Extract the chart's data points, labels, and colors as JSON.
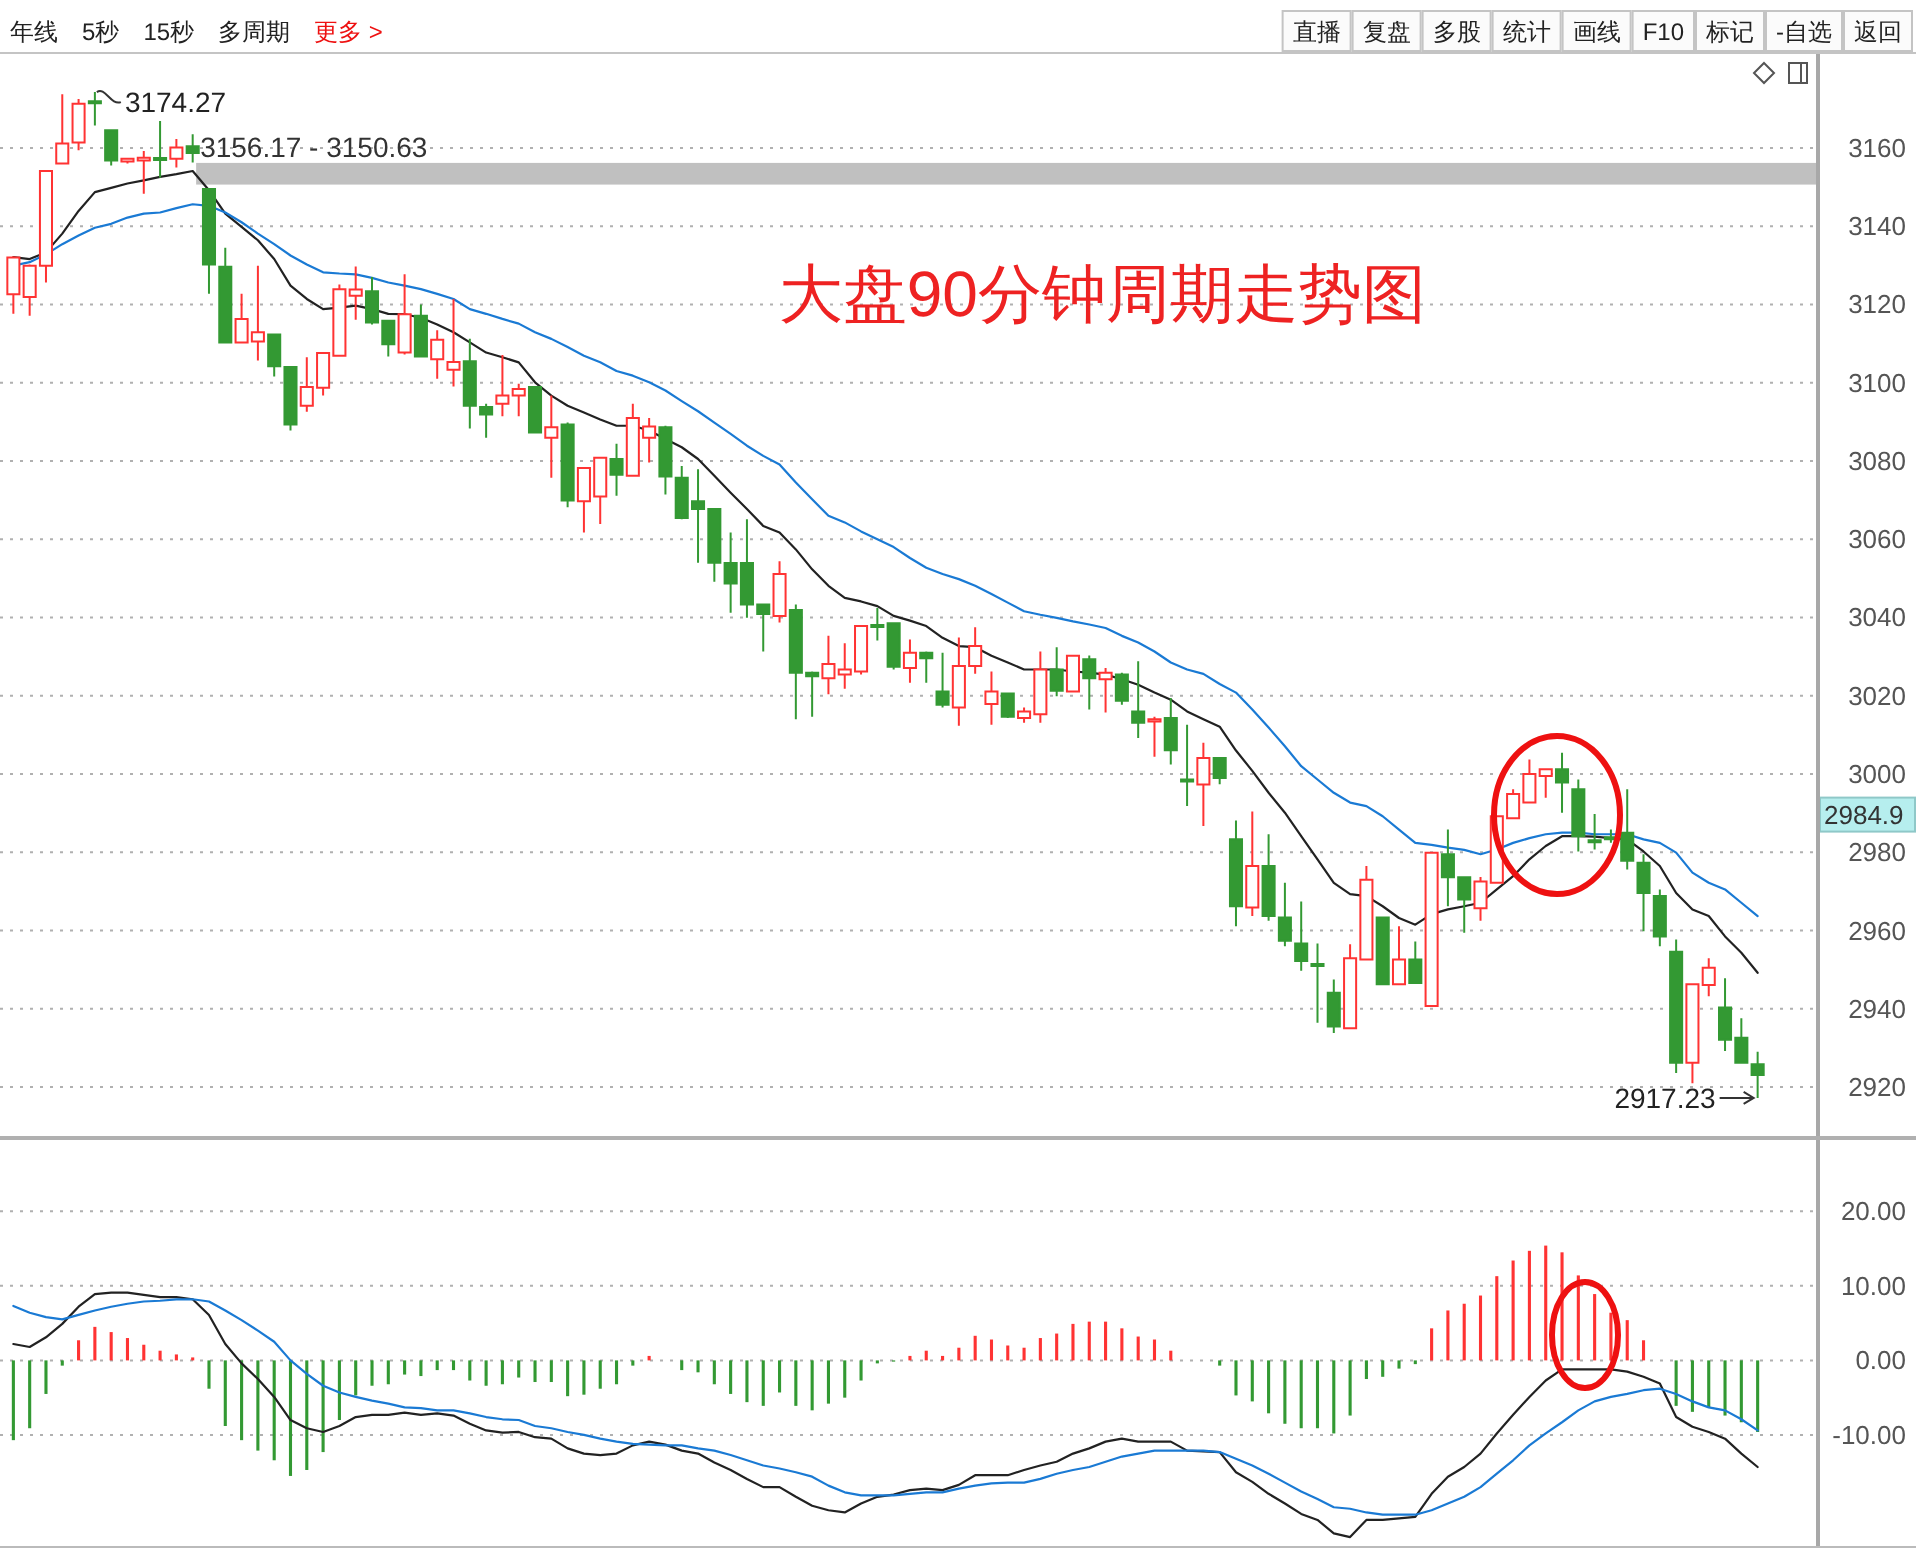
{
  "chart_data": [
    {
      "type": "candlestick",
      "title": "大盘90分钟周期走势图",
      "categories": [
        null,
        null,
        null,
        null,
        null,
        null,
        null,
        null,
        null,
        null,
        null,
        null,
        null,
        null,
        null,
        null,
        null,
        null,
        null,
        null,
        null,
        null,
        null,
        null,
        null,
        null,
        null,
        null,
        null,
        null,
        null,
        null,
        null,
        null,
        null,
        null,
        null,
        null,
        null,
        null,
        null,
        null,
        null,
        null,
        null,
        null,
        null,
        null,
        null,
        null,
        null,
        null,
        null,
        null,
        null,
        null,
        null,
        null,
        null,
        null,
        null,
        null,
        null,
        null,
        null,
        null,
        null,
        null,
        null,
        null,
        null,
        null,
        null,
        null,
        null,
        null,
        null,
        null,
        null,
        null,
        null,
        null,
        null,
        null,
        null,
        null,
        null,
        null,
        null,
        null,
        null,
        null,
        null,
        null,
        null,
        null,
        null,
        null,
        null,
        null,
        null,
        null,
        null,
        null,
        null,
        null,
        null,
        null
      ],
      "ohlc": [
        [
          3122.6,
          3132.3,
          3117.6,
          3132.0
        ],
        [
          3121.9,
          3130.2,
          3117.1,
          3129.9
        ],
        [
          3129.9,
          3154.1,
          3125.6,
          3154.1
        ],
        [
          3156.0,
          3173.7,
          3156.0,
          3161.1
        ],
        [
          3161.4,
          3172.5,
          3159.4,
          3171.3
        ],
        [
          3171.9,
          3174.27,
          3165.7,
          3171.4
        ],
        [
          3164.5,
          3164.5,
          3155.5,
          3156.8
        ],
        [
          3156.5,
          3157.5,
          3156.0,
          3157.2
        ],
        [
          3156.8,
          3159.2,
          3148.3,
          3157.5
        ],
        [
          3157.3,
          3166.9,
          3152.4,
          3157.0
        ],
        [
          3157.2,
          3162.3,
          3155.0,
          3160.1
        ],
        [
          3160.4,
          3163.5,
          3156.3,
          3158.7
        ],
        [
          3149.5,
          3149.5,
          3122.7,
          3130.2
        ],
        [
          3129.6,
          3134.5,
          3110.3,
          3110.3
        ],
        [
          3110.3,
          3122.7,
          3110.3,
          3116.3
        ],
        [
          3110.5,
          3129.9,
          3105.7,
          3112.9
        ],
        [
          3112.3,
          3112.3,
          3101.6,
          3104.2
        ],
        [
          3104.0,
          3104.0,
          3087.8,
          3089.3
        ],
        [
          3094.1,
          3106.5,
          3092.6,
          3098.9
        ],
        [
          3098.7,
          3107.6,
          3096.7,
          3107.6
        ],
        [
          3106.9,
          3125.1,
          3106.9,
          3123.9
        ],
        [
          3122.2,
          3129.7,
          3116.1,
          3123.8
        ],
        [
          3123.4,
          3127.0,
          3114.9,
          3115.4
        ],
        [
          3115.8,
          3115.8,
          3106.7,
          3109.8
        ],
        [
          3107.7,
          3127.7,
          3107.2,
          3117.5
        ],
        [
          3117.1,
          3120.0,
          3106.7,
          3106.7
        ],
        [
          3106.0,
          3113.4,
          3101.0,
          3111.0
        ],
        [
          3103.3,
          3121.4,
          3099.0,
          3105.3
        ],
        [
          3105.5,
          3111.2,
          3088.3,
          3094.1
        ],
        [
          3093.8,
          3094.6,
          3085.9,
          3091.9
        ],
        [
          3094.6,
          3107.1,
          3091.4,
          3096.7
        ],
        [
          3096.7,
          3099.7,
          3091.4,
          3098.4
        ],
        [
          3098.9,
          3099.0,
          3087.3,
          3087.3
        ],
        [
          3085.9,
          3096.7,
          3075.7,
          3088.6
        ],
        [
          3089.3,
          3089.8,
          3068.2,
          3069.9
        ],
        [
          3069.7,
          3078.2,
          3061.7,
          3078.2
        ],
        [
          3070.9,
          3080.8,
          3063.9,
          3080.8
        ],
        [
          3080.5,
          3084.4,
          3071.1,
          3076.5
        ],
        [
          3076.2,
          3094.6,
          3076.2,
          3091.0
        ],
        [
          3085.9,
          3091.0,
          3079.6,
          3088.8
        ],
        [
          3088.6,
          3089.0,
          3071.4,
          3076.0
        ],
        [
          3075.7,
          3078.7,
          3065.1,
          3065.4
        ],
        [
          3069.7,
          3077.9,
          3054.0,
          3067.7
        ],
        [
          3067.7,
          3067.7,
          3049.1,
          3054.0
        ],
        [
          3053.9,
          3061.7,
          3041.2,
          3048.7
        ],
        [
          3053.9,
          3065.1,
          3039.9,
          3043.3
        ],
        [
          3043.3,
          3043.3,
          3031.3,
          3040.9
        ],
        [
          3040.4,
          3054.4,
          3038.7,
          3051.1
        ],
        [
          3041.9,
          3043.3,
          3014.0,
          3025.9
        ],
        [
          3025.9,
          3026.2,
          3014.6,
          3025.0
        ],
        [
          3024.5,
          3035.3,
          3020.4,
          3028.1
        ],
        [
          3025.4,
          3033.4,
          3021.8,
          3026.7
        ],
        [
          3026.2,
          3037.8,
          3025.4,
          3037.8
        ],
        [
          3038.0,
          3042.4,
          3034.1,
          3037.6
        ],
        [
          3038.5,
          3038.5,
          3026.7,
          3027.4
        ],
        [
          3027.1,
          3034.4,
          3023.3,
          3031.0
        ],
        [
          3031.0,
          3031.3,
          3023.3,
          3029.6
        ],
        [
          3021.1,
          3031.0,
          3017.0,
          3017.7
        ],
        [
          3017.0,
          3034.9,
          3012.3,
          3027.6
        ],
        [
          3027.6,
          3037.5,
          3025.6,
          3032.7
        ],
        [
          3017.9,
          3026.2,
          3012.6,
          3021.1
        ],
        [
          3020.6,
          3020.8,
          3014.3,
          3014.6
        ],
        [
          3014.3,
          3017.0,
          3013.1,
          3016.0
        ],
        [
          3015.3,
          3031.3,
          3013.1,
          3026.7
        ],
        [
          3026.7,
          3032.4,
          3019.9,
          3021.3
        ],
        [
          3021.1,
          3030.2,
          3021.1,
          3030.2
        ],
        [
          3029.3,
          3030.3,
          3016.5,
          3024.5
        ],
        [
          3024.2,
          3027.1,
          3015.7,
          3025.9
        ],
        [
          3025.4,
          3025.9,
          3017.7,
          3018.7
        ],
        [
          3016.0,
          3028.8,
          3009.2,
          3013.1
        ],
        [
          3013.4,
          3014.6,
          3004.4,
          3014.0
        ],
        [
          3014.3,
          3019.4,
          3002.4,
          3006.1
        ],
        [
          2998.6,
          3012.6,
          2991.8,
          2998.1
        ],
        [
          2997.3,
          3008.0,
          2986.7,
          3004.1
        ],
        [
          3004.1,
          3004.1,
          2997.4,
          2999.0
        ],
        [
          2983.3,
          2988.1,
          2961.1,
          2966.2
        ],
        [
          2965.9,
          2990.4,
          2963.7,
          2976.5
        ],
        [
          2976.5,
          2984.6,
          2962.5,
          2963.7
        ],
        [
          2963.3,
          2972.2,
          2956.0,
          2957.4
        ],
        [
          2956.7,
          2967.4,
          2949.7,
          2952.2
        ],
        [
          2951.4,
          2956.7,
          2936.4,
          2951.0
        ],
        [
          2944.1,
          2947.5,
          2933.8,
          2935.5
        ],
        [
          2935.0,
          2956.5,
          2935.0,
          2952.9
        ],
        [
          2952.6,
          2976.5,
          2952.6,
          2973.0
        ],
        [
          2963.3,
          2963.3,
          2946.3,
          2946.3
        ],
        [
          2946.3,
          2961.1,
          2946.3,
          2952.6
        ],
        [
          2952.6,
          2957.2,
          2946.6,
          2946.6
        ],
        [
          2940.7,
          2979.9,
          2940.7,
          2979.9
        ],
        [
          2979.5,
          2985.8,
          2966.2,
          2973.6
        ],
        [
          2973.6,
          2973.6,
          2959.4,
          2967.9
        ],
        [
          2965.7,
          2973.7,
          2962.5,
          2972.5
        ],
        [
          2972.2,
          2989.2,
          2972.2,
          2989.2
        ],
        [
          2988.7,
          2996.1,
          2988.7,
          2994.9
        ],
        [
          2992.7,
          3003.7,
          2992.7,
          3000.0
        ],
        [
          2999.5,
          3001.5,
          2993.9,
          3001.2
        ],
        [
          3001.2,
          3005.4,
          2990.1,
          2997.8
        ],
        [
          2996.1,
          2998.6,
          2980.2,
          2984.1
        ],
        [
          2983.0,
          2989.8,
          2980.7,
          2982.6
        ],
        [
          2983.8,
          2985.8,
          2982.4,
          2983.4
        ],
        [
          2985.0,
          2996.1,
          2975.6,
          2977.8
        ],
        [
          2977.3,
          2979.5,
          2959.8,
          2969.6
        ],
        [
          2968.8,
          2970.5,
          2956.0,
          2958.5
        ],
        [
          2954.6,
          2957.7,
          2923.6,
          2926.2
        ],
        [
          2926.2,
          2946.3,
          2921.0,
          2946.3
        ],
        [
          2946.1,
          2952.9,
          2943.2,
          2950.5
        ],
        [
          2940.3,
          2947.8,
          2929.2,
          2932.1
        ],
        [
          2932.6,
          2937.6,
          2926.2,
          2926.2
        ],
        [
          2925.8,
          2929.0,
          2917.23,
          2923.1
        ]
      ],
      "colors": [
        "#ff3333",
        "#ff3333",
        "#ff3333",
        "#ff3333",
        "#ff3333",
        "#339933",
        "#339933",
        "#ff3333",
        "#ff3333",
        "#339933",
        "#ff3333",
        "#339933",
        "#339933",
        "#339933",
        "#ff3333",
        "#ff3333",
        "#339933",
        "#339933",
        "#ff3333",
        "#ff3333",
        "#ff3333",
        "#ff3333",
        "#339933",
        "#339933",
        "#ff3333",
        "#339933",
        "#ff3333",
        "#ff3333",
        "#339933",
        "#339933",
        "#ff3333",
        "#ff3333",
        "#339933",
        "#ff3333",
        "#339933",
        "#ff3333",
        "#ff3333",
        "#339933",
        "#ff3333",
        "#ff3333",
        "#339933",
        "#339933",
        "#339933",
        "#339933",
        "#339933",
        "#339933",
        "#339933",
        "#ff3333",
        "#339933",
        "#339933",
        "#ff3333",
        "#ff3333",
        "#ff3333",
        "#339933",
        "#339933",
        "#ff3333",
        "#339933",
        "#339933",
        "#ff3333",
        "#ff3333",
        "#ff3333",
        "#339933",
        "#ff3333",
        "#ff3333",
        "#339933",
        "#ff3333",
        "#339933",
        "#ff3333",
        "#339933",
        "#339933",
        "#ff3333",
        "#339933",
        "#339933",
        "#ff3333",
        "#339933",
        "#339933",
        "#ff3333",
        "#339933",
        "#339933",
        "#339933",
        "#339933",
        "#339933",
        "#ff3333",
        "#ff3333",
        "#339933",
        "#ff3333",
        "#339933",
        "#ff3333",
        "#339933",
        "#339933",
        "#ff3333",
        "#ff3333",
        "#ff3333",
        "#ff3333",
        "#ff3333",
        "#339933",
        "#339933",
        "#339933",
        "#339933",
        "#339933",
        "#339933",
        "#339933",
        "#339933",
        "#ff3333",
        "#ff3333",
        "#339933",
        "#339933",
        "#339933"
      ],
      "series": [
        {
          "type": "line",
          "color": "#222222",
          "values": [
            3132.1,
            3131.6,
            3133.3,
            3138.1,
            3143.9,
            3148.7,
            3149.8,
            3150.9,
            3151.7,
            3152.6,
            3153.3,
            3154.1,
            3149.2,
            3143.2,
            3139.8,
            3136.4,
            3131.6,
            3124.8,
            3121.4,
            3118.8,
            3119.2,
            3119.7,
            3118.8,
            3117.6,
            3117.5,
            3116.6,
            3114.9,
            3112.9,
            3110.3,
            3107.7,
            3106.5,
            3105.2,
            3100.1,
            3096.7,
            3094.1,
            3092.4,
            3090.6,
            3089.0,
            3089.0,
            3087.8,
            3085.6,
            3083.5,
            3080.5,
            3076.2,
            3071.9,
            3067.7,
            3063.4,
            3061.7,
            3057.4,
            3052.3,
            3048.1,
            3045.0,
            3044.1,
            3042.9,
            3040.4,
            3039.2,
            3037.8,
            3034.8,
            3032.7,
            3032.4,
            3030.2,
            3028.5,
            3026.7,
            3026.7,
            3026.7,
            3026.2,
            3025.9,
            3025.4,
            3024.2,
            3022.8,
            3020.8,
            3019.0,
            3016.0,
            3014.0,
            3012.1,
            3006.0,
            3000.8,
            2995.2,
            2990.1,
            2984.1,
            2978.2,
            2972.2,
            2969.3,
            2968.8,
            2966.2,
            2963.2,
            2961.5,
            2964.2,
            2965.4,
            2966.2,
            2967.1,
            2970.5,
            2973.9,
            2978.2,
            2981.6,
            2984.1,
            2984.1,
            2984.0,
            2983.6,
            2983.3,
            2980.2,
            2976.5,
            2969.6,
            2965.4,
            2963.7,
            2958.5,
            2954.3,
            2949.2
          ]
        },
        {
          "type": "line",
          "color": "#1a7ad4",
          "values": [
            3129.9,
            3130.8,
            3132.8,
            3135.4,
            3137.6,
            3139.6,
            3140.6,
            3142.2,
            3143.2,
            3143.5,
            3144.6,
            3145.6,
            3145.2,
            3143.5,
            3141.0,
            3138.1,
            3135.4,
            3132.5,
            3130.2,
            3128.2,
            3127.9,
            3127.7,
            3126.8,
            3125.6,
            3124.8,
            3123.9,
            3122.7,
            3121.4,
            3118.8,
            3117.6,
            3116.3,
            3115.1,
            3112.9,
            3111.2,
            3109.1,
            3106.9,
            3105.2,
            3103.0,
            3101.8,
            3100.1,
            3098.0,
            3095.3,
            3092.7,
            3089.8,
            3086.9,
            3083.9,
            3081.3,
            3079.1,
            3074.5,
            3070.2,
            3066.0,
            3064.3,
            3062.0,
            3060.0,
            3058.0,
            3055.2,
            3052.7,
            3051.1,
            3049.8,
            3048.1,
            3046.0,
            3043.8,
            3041.6,
            3040.7,
            3039.9,
            3039.0,
            3038.2,
            3037.3,
            3035.3,
            3033.6,
            3031.3,
            3028.5,
            3026.7,
            3025.6,
            3023.0,
            3020.8,
            3016.5,
            3011.9,
            3007.1,
            3002.0,
            2998.6,
            2995.2,
            2992.7,
            2991.8,
            2989.2,
            2985.8,
            2982.4,
            2981.9,
            2981.2,
            2980.6,
            2979.5,
            2980.7,
            2982.4,
            2983.6,
            2984.6,
            2985.0,
            2985.0,
            2984.6,
            2984.6,
            2984.6,
            2983.3,
            2982.4,
            2979.9,
            2974.8,
            2972.2,
            2970.5,
            2967.1,
            2963.7
          ]
        }
      ],
      "ylim": [
        2908,
        3184
      ],
      "yticks": [
        2920,
        2940,
        2960,
        2980,
        3000,
        3020,
        3040,
        3060,
        3080,
        3100,
        3120,
        3140,
        3160
      ],
      "grid": "y",
      "tick_labels": "y",
      "bands": [
        {
          "axis": "y",
          "from": 3150.63,
          "to": 3156.17,
          "label": "3156.17 - 3150.63",
          "color": "#c0c0c0"
        }
      ],
      "annotations": [
        "年线",
        "5秒",
        "15秒",
        "多周期",
        "更多 >",
        "直播",
        "复盘",
        "多股",
        "统计",
        "画线",
        "F10",
        "标记",
        "-自选",
        "返回",
        "3174.27",
        "2917.23",
        "2984.9"
      ]
    },
    {
      "type": "bar",
      "categories": [
        null,
        null,
        null,
        null,
        null,
        null,
        null,
        null,
        null,
        null,
        null,
        null,
        null,
        null,
        null,
        null,
        null,
        null,
        null,
        null,
        null,
        null,
        null,
        null,
        null,
        null,
        null,
        null,
        null,
        null,
        null,
        null,
        null,
        null,
        null,
        null,
        null,
        null,
        null,
        null,
        null,
        null,
        null,
        null,
        null,
        null,
        null,
        null,
        null,
        null,
        null,
        null,
        null,
        null,
        null,
        null,
        null,
        null,
        null,
        null,
        null,
        null,
        null,
        null,
        null,
        null,
        null,
        null,
        null,
        null,
        null,
        null,
        null,
        null,
        null,
        null,
        null,
        null,
        null,
        null,
        null,
        null,
        null,
        null,
        null,
        null,
        null,
        null,
        null,
        null,
        null,
        null,
        null,
        null,
        null,
        null,
        null,
        null,
        null,
        null,
        null,
        null,
        null,
        null,
        null,
        null,
        null,
        null
      ],
      "series": [
        {
          "type": "bar",
          "values": [
            -10.7,
            -9.1,
            -4.5,
            -0.7,
            2.7,
            4.5,
            3.8,
            3.0,
            2.1,
            1.3,
            0.8,
            0.4,
            -3.8,
            -8.8,
            -10.7,
            -12.1,
            -13.4,
            -15.5,
            -14.7,
            -12.3,
            -8.0,
            -4.7,
            -3.4,
            -3.2,
            -1.9,
            -2.1,
            -1.3,
            -1.3,
            -2.7,
            -3.4,
            -3.2,
            -2.3,
            -2.9,
            -2.9,
            -4.8,
            -4.6,
            -3.8,
            -3.2,
            -0.7,
            0.6,
            null,
            -1.3,
            -1.6,
            -3.2,
            -4.5,
            -5.6,
            -6.1,
            -4.3,
            -6.1,
            -6.7,
            -5.8,
            -5.0,
            -2.7,
            -0.4,
            -0.1,
            0.6,
            1.3,
            0.6,
            1.7,
            3.3,
            2.8,
            2.0,
            1.7,
            3.0,
            3.6,
            4.9,
            5.2,
            5.2,
            4.3,
            3.2,
            2.8,
            1.3,
            null,
            null,
            -0.7,
            -4.7,
            -5.5,
            -7.1,
            -8.5,
            -9.1,
            -9.1,
            -9.8,
            -7.4,
            -2.5,
            -2.2,
            -1.1,
            -0.5,
            4.3,
            6.7,
            7.6,
            8.7,
            11.3,
            13.4,
            14.7,
            15.4,
            14.5,
            11.4,
            8.9,
            6.4,
            5.4,
            2.7,
            null,
            -6.1,
            -6.9,
            -6.3,
            -7.4,
            -8.3,
            -9.6
          ],
          "colors": [
            "#339933",
            "#339933",
            "#339933",
            "#339933",
            "#ff3333",
            "#ff3333",
            "#ff3333",
            "#ff3333",
            "#ff3333",
            "#ff3333",
            "#ff3333",
            "#ff3333",
            "#339933",
            "#339933",
            "#339933",
            "#339933",
            "#339933",
            "#339933",
            "#339933",
            "#339933",
            "#339933",
            "#339933",
            "#339933",
            "#339933",
            "#339933",
            "#339933",
            "#339933",
            "#339933",
            "#339933",
            "#339933",
            "#339933",
            "#339933",
            "#339933",
            "#339933",
            "#339933",
            "#339933",
            "#339933",
            "#339933",
            "#339933",
            "#ff3333",
            null,
            "#339933",
            "#339933",
            "#339933",
            "#339933",
            "#339933",
            "#339933",
            "#339933",
            "#339933",
            "#339933",
            "#339933",
            "#339933",
            "#339933",
            "#339933",
            "#339933",
            "#ff3333",
            "#ff3333",
            "#ff3333",
            "#ff3333",
            "#ff3333",
            "#ff3333",
            "#ff3333",
            "#ff3333",
            "#ff3333",
            "#ff3333",
            "#ff3333",
            "#ff3333",
            "#ff3333",
            "#ff3333",
            "#ff3333",
            "#ff3333",
            "#ff3333",
            null,
            null,
            "#339933",
            "#339933",
            "#339933",
            "#339933",
            "#339933",
            "#339933",
            "#339933",
            "#339933",
            "#339933",
            "#339933",
            "#339933",
            "#339933",
            "#339933",
            "#ff3333",
            "#ff3333",
            "#ff3333",
            "#ff3333",
            "#ff3333",
            "#ff3333",
            "#ff3333",
            "#ff3333",
            "#ff3333",
            "#ff3333",
            "#ff3333",
            "#ff3333",
            "#ff3333",
            "#ff3333",
            null,
            "#339933",
            "#339933",
            "#339933",
            "#339933",
            "#339933",
            "#339933"
          ]
        },
        {
          "type": "line",
          "color": "#222222",
          "values": [
            2.2,
            1.8,
            3.1,
            4.9,
            7.2,
            8.9,
            9.1,
            9.1,
            8.8,
            8.5,
            8.5,
            8.2,
            6.1,
            2.2,
            -0.4,
            -2.5,
            -4.9,
            -8.0,
            -9.1,
            -9.6,
            -8.8,
            -7.6,
            -7.3,
            -7.3,
            -7.0,
            -7.3,
            -7.1,
            -7.4,
            -8.5,
            -9.4,
            -9.7,
            -9.6,
            -10.3,
            -10.5,
            -11.8,
            -12.5,
            -12.7,
            -12.5,
            -11.4,
            -10.9,
            -11.3,
            -12.1,
            -12.5,
            -13.7,
            -14.7,
            -15.9,
            -17.0,
            -17.0,
            -18.3,
            -19.5,
            -20.1,
            -20.4,
            -19.2,
            -18.3,
            -18.0,
            -17.4,
            -17.2,
            -17.4,
            -16.7,
            -15.4,
            -15.4,
            -15.4,
            -14.7,
            -14.1,
            -13.6,
            -12.5,
            -11.8,
            -10.9,
            -10.5,
            -10.9,
            -10.9,
            -10.9,
            -12.1,
            -12.2,
            -12.3,
            -15.0,
            -16.3,
            -17.9,
            -19.2,
            -20.6,
            -21.4,
            -23.2,
            -23.7,
            -21.4,
            -21.4,
            -21.2,
            -21.0,
            -17.9,
            -15.6,
            -14.3,
            -12.5,
            -9.8,
            -7.3,
            -4.9,
            -2.7,
            -1.2,
            -1.2,
            -1.2,
            -1.2,
            -1.5,
            -2.2,
            -3.1,
            -7.6,
            -8.9,
            -9.6,
            -10.5,
            -12.5,
            -14.3
          ]
        },
        {
          "type": "line",
          "color": "#1a7ad4",
          "values": [
            7.3,
            6.4,
            5.8,
            5.5,
            6.1,
            6.7,
            7.2,
            7.6,
            7.9,
            8.0,
            8.2,
            8.2,
            7.9,
            6.7,
            5.4,
            4.0,
            2.5,
            0.0,
            -1.8,
            -3.4,
            -4.3,
            -4.9,
            -5.4,
            -5.8,
            -6.3,
            -6.4,
            -6.7,
            -6.7,
            -7.1,
            -7.6,
            -7.9,
            -8.0,
            -8.8,
            -9.1,
            -9.6,
            -10.0,
            -10.5,
            -10.9,
            -11.2,
            -11.3,
            -11.4,
            -11.4,
            -11.8,
            -12.1,
            -12.7,
            -13.4,
            -14.1,
            -14.5,
            -15.0,
            -15.6,
            -16.8,
            -17.7,
            -18.1,
            -18.1,
            -18.1,
            -17.9,
            -17.7,
            -17.7,
            -17.2,
            -16.8,
            -16.5,
            -16.4,
            -16.4,
            -15.9,
            -15.2,
            -14.7,
            -14.3,
            -13.6,
            -12.9,
            -12.5,
            -12.1,
            -12.1,
            -12.1,
            -12.1,
            -12.3,
            -13.2,
            -14.1,
            -15.2,
            -16.4,
            -17.6,
            -18.6,
            -19.7,
            -19.9,
            -20.4,
            -20.7,
            -20.7,
            -20.7,
            -20.1,
            -19.2,
            -18.3,
            -17.0,
            -15.2,
            -13.4,
            -11.4,
            -9.8,
            -8.3,
            -6.7,
            -5.5,
            -4.9,
            -4.5,
            -4.0,
            -3.8,
            -4.5,
            -5.5,
            -6.3,
            -6.7,
            -7.9,
            -9.4
          ]
        }
      ],
      "ylim": [
        -24.9,
        29.3
      ],
      "yticks": [
        {
          "value": 20,
          "label": "20.00"
        },
        {
          "value": 10,
          "label": "10.00"
        },
        {
          "value": 0,
          "label": "0.00"
        },
        {
          "value": -10,
          "label": "-10.00"
        }
      ],
      "grid": "y",
      "tick_labels": "y"
    }
  ]
}
